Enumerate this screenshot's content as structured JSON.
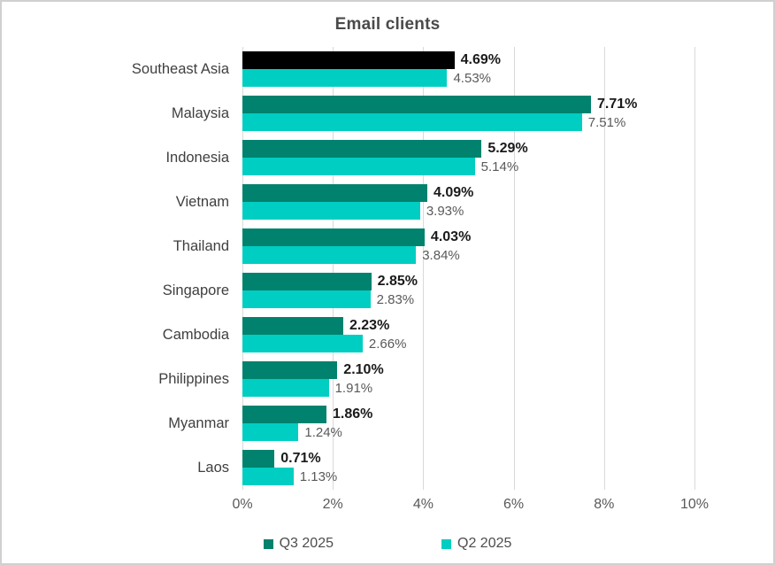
{
  "chart_data": {
    "type": "bar",
    "orientation": "horizontal",
    "title": "Email clients",
    "categories": [
      "Southeast Asia",
      "Malaysia",
      "Indonesia",
      "Vietnam",
      "Thailand",
      "Singapore",
      "Cambodia",
      "Philippines",
      "Myanmar",
      "Laos"
    ],
    "series": [
      {
        "name": "Q3 2025",
        "color": "#00826E",
        "values": [
          4.69,
          7.71,
          5.29,
          4.09,
          4.03,
          2.85,
          2.23,
          2.1,
          1.86,
          0.71
        ],
        "labels": [
          "4.69%",
          "7.71%",
          "5.29%",
          "4.09%",
          "4.03%",
          "2.85%",
          "2.23%",
          "2.10%",
          "1.86%",
          "0.71%"
        ]
      },
      {
        "name": "Q2 2025",
        "color": "#00CEC2",
        "values": [
          4.53,
          7.51,
          5.14,
          3.93,
          3.84,
          2.83,
          2.66,
          1.91,
          1.24,
          1.13
        ],
        "labels": [
          "4.53%",
          "7.51%",
          "5.14%",
          "3.93%",
          "3.84%",
          "2.83%",
          "2.66%",
          "1.91%",
          "1.24%",
          "1.13%"
        ]
      }
    ],
    "highlight": {
      "category": "Southeast Asia",
      "series": "Q3 2025",
      "color": "#000000"
    },
    "x_axis": {
      "min": 0,
      "max": 10,
      "ticks": [
        "0%",
        "2%",
        "4%",
        "6%",
        "8%",
        "10%"
      ],
      "grid": true
    },
    "legend": [
      {
        "label": "Q3 2025",
        "color": "#00826E"
      },
      {
        "label": "Q2 2025",
        "color": "#00CEC2"
      }
    ],
    "legend_position": "bottom",
    "gridline_color": "#d9d9d9"
  }
}
